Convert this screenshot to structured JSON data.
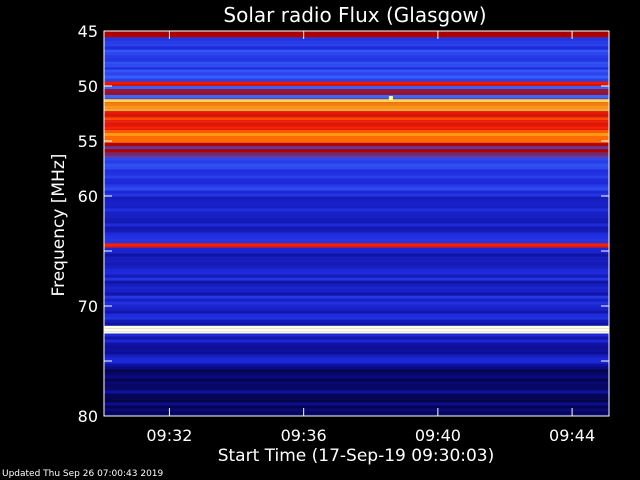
{
  "chart_data": {
    "type": "heatmap",
    "title": "Solar radio Flux (Glasgow)",
    "ylabel": "Frequency [MHz]",
    "xlabel": "Start Time (17-Sep-19 09:30:03)",
    "ylim": [
      45,
      80
    ],
    "y_inverted": true,
    "y_ticks": [
      45,
      50,
      55,
      60,
      65,
      70,
      75,
      80
    ],
    "y_tick_labels": [
      "45",
      "50",
      "55",
      "60",
      "",
      "70",
      "",
      "80"
    ],
    "x_range_minutes": [
      30.05,
      45.1
    ],
    "x_ticks_minutes": [
      32,
      36,
      40,
      44
    ],
    "x_tick_labels": [
      "09:32",
      "09:36",
      "09:40",
      "09:44"
    ],
    "colormap": [
      "#000000",
      "#0a0a8c",
      "#1e2adc",
      "#3c64ff",
      "#aa0000",
      "#ff2000",
      "#ff8000",
      "#ffff80",
      "#ffffff"
    ],
    "intensity_bands": [
      {
        "f_from": 45.0,
        "f_to": 45.6,
        "level": 0.5
      },
      {
        "f_from": 45.6,
        "f_to": 48.5,
        "level": 0.3
      },
      {
        "f_from": 48.5,
        "f_to": 49.6,
        "level": 0.34
      },
      {
        "f_from": 49.6,
        "f_to": 50.0,
        "level": 0.6
      },
      {
        "f_from": 50.0,
        "f_to": 51.2,
        "level": 0.42
      },
      {
        "f_from": 51.2,
        "f_to": 52.3,
        "level": 0.78
      },
      {
        "f_from": 52.3,
        "f_to": 54.0,
        "level": 0.62
      },
      {
        "f_from": 54.0,
        "f_to": 55.2,
        "level": 0.74
      },
      {
        "f_from": 55.2,
        "f_to": 56.5,
        "level": 0.46
      },
      {
        "f_from": 56.5,
        "f_to": 59.5,
        "level": 0.3
      },
      {
        "f_from": 59.5,
        "f_to": 64.3,
        "level": 0.22
      },
      {
        "f_from": 64.3,
        "f_to": 64.7,
        "level": 0.58
      },
      {
        "f_from": 64.7,
        "f_to": 71.8,
        "level": 0.22
      },
      {
        "f_from": 71.8,
        "f_to": 72.5,
        "level": 0.95
      },
      {
        "f_from": 72.5,
        "f_to": 75.5,
        "level": 0.2
      },
      {
        "f_from": 75.5,
        "f_to": 80.0,
        "level": 0.12
      }
    ],
    "hotspot": {
      "minute": 38.6,
      "mhz": 51.1,
      "level": 0.9
    }
  },
  "footer": {
    "updated": "Updated Thu Sep 26 07:00:43 2019"
  }
}
